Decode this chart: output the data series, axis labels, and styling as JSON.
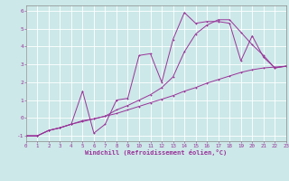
{
  "xlabel": "Windchill (Refroidissement éolien,°C)",
  "bg_color": "#cce8e8",
  "line_color": "#993399",
  "grid_color": "#b0d0d0",
  "xlim": [
    0,
    23
  ],
  "ylim": [
    -1.3,
    6.3
  ],
  "xticks": [
    0,
    1,
    2,
    3,
    4,
    5,
    6,
    7,
    8,
    9,
    10,
    11,
    12,
    13,
    14,
    15,
    16,
    17,
    18,
    19,
    20,
    21,
    22,
    23
  ],
  "yticks": [
    -1,
    0,
    1,
    2,
    3,
    4,
    5,
    6
  ],
  "line1": {
    "x": [
      0,
      1,
      2,
      3,
      4,
      5,
      6,
      7,
      8,
      9,
      10,
      11,
      12,
      13,
      14,
      15,
      16,
      17,
      18,
      19,
      20,
      21,
      22,
      23
    ],
    "y": [
      -1.0,
      -1.0,
      -0.7,
      -0.55,
      -0.35,
      -0.2,
      -0.05,
      0.1,
      0.25,
      0.45,
      0.65,
      0.85,
      1.05,
      1.25,
      1.5,
      1.7,
      1.95,
      2.15,
      2.35,
      2.55,
      2.7,
      2.8,
      2.85,
      2.9
    ]
  },
  "line2": {
    "x": [
      0,
      1,
      2,
      3,
      4,
      5,
      6,
      7,
      8,
      9,
      10,
      11,
      12,
      13,
      14,
      15,
      16,
      17,
      18,
      19,
      20,
      21,
      22,
      23
    ],
    "y": [
      -1.0,
      -1.0,
      -0.7,
      -0.55,
      -0.35,
      1.5,
      -0.85,
      -0.35,
      1.0,
      1.1,
      3.5,
      3.6,
      2.0,
      4.4,
      5.9,
      5.3,
      5.4,
      5.4,
      5.3,
      3.2,
      4.6,
      3.4,
      2.8,
      2.9
    ]
  },
  "line3": {
    "x": [
      0,
      1,
      2,
      3,
      4,
      5,
      6,
      7,
      8,
      9,
      10,
      11,
      12,
      13,
      14,
      15,
      16,
      17,
      18,
      19,
      20,
      21,
      22,
      23
    ],
    "y": [
      -1.0,
      -1.0,
      -0.7,
      -0.55,
      -0.35,
      -0.15,
      -0.05,
      0.1,
      0.45,
      0.7,
      1.0,
      1.3,
      1.7,
      2.3,
      3.7,
      4.7,
      5.2,
      5.5,
      5.5,
      4.8,
      4.1,
      3.5,
      2.8,
      2.9
    ]
  }
}
